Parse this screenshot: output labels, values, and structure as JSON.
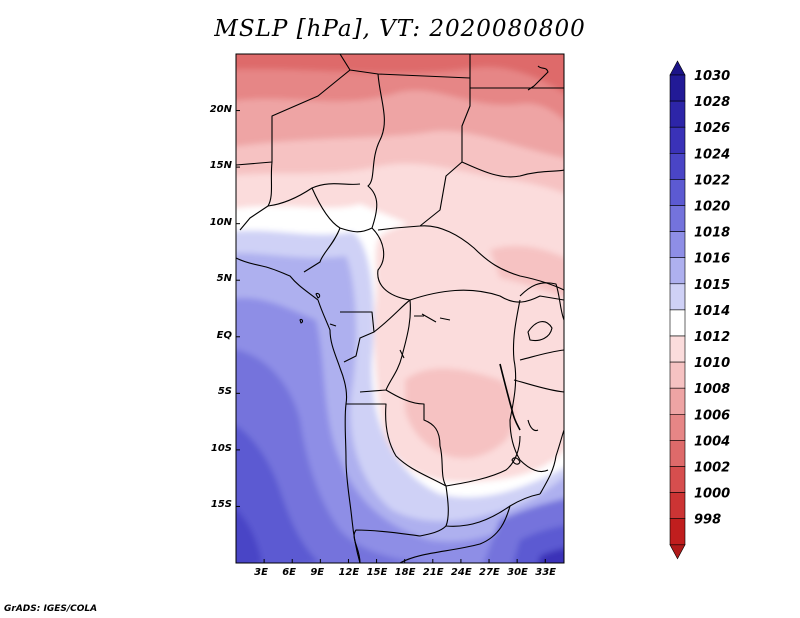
{
  "title": "MSLP [hPa], VT: 2020080800",
  "footer": "GrADS: IGES/COLA",
  "map": {
    "lat_labels": [
      "20N",
      "15N",
      "10N",
      "5N",
      "EQ",
      "5S",
      "10S",
      "15S"
    ],
    "lat_values": [
      20,
      15,
      10,
      5,
      0,
      -5,
      -10,
      -15
    ],
    "lon_labels": [
      "3E",
      "6E",
      "9E",
      "12E",
      "15E",
      "18E",
      "21E",
      "24E",
      "27E",
      "30E",
      "33E"
    ],
    "lon_values": [
      3,
      6,
      9,
      12,
      15,
      18,
      21,
      24,
      27,
      30,
      33
    ],
    "lat_range": [
      -20,
      25
    ],
    "lon_range": [
      0,
      35
    ],
    "field": "mean sea level pressure",
    "low_color": "#c81e1e",
    "high_color": "#1e1eb4"
  },
  "colorbar": {
    "levels": [
      {
        "label": "1030",
        "color": "#221a96"
      },
      {
        "label": "1028",
        "color": "#2d25a8"
      },
      {
        "label": "1026",
        "color": "#3a32b8"
      },
      {
        "label": "1024",
        "color": "#4a45c6"
      },
      {
        "label": "1022",
        "color": "#5c5ad2"
      },
      {
        "label": "1020",
        "color": "#7473dc"
      },
      {
        "label": "1018",
        "color": "#8e8ee6"
      },
      {
        "label": "1016",
        "color": "#aeb0ef"
      },
      {
        "label": "1015",
        "color": "#cfd1f6"
      },
      {
        "label": "1014",
        "color": "#ffffff"
      },
      {
        "label": "1012",
        "color": "#fbdcdc"
      },
      {
        "label": "1010",
        "color": "#f6c2c2"
      },
      {
        "label": "1008",
        "color": "#eea4a4"
      },
      {
        "label": "1006",
        "color": "#e68686"
      },
      {
        "label": "1004",
        "color": "#de6a6a"
      },
      {
        "label": "1002",
        "color": "#d64e4e"
      },
      {
        "label": "1000",
        "color": "#cc3434"
      },
      {
        "label": "998",
        "color": "#c01e1e"
      }
    ],
    "top_arrow_color": "#1c1488",
    "bottom_arrow_color": "#b01a1a"
  }
}
